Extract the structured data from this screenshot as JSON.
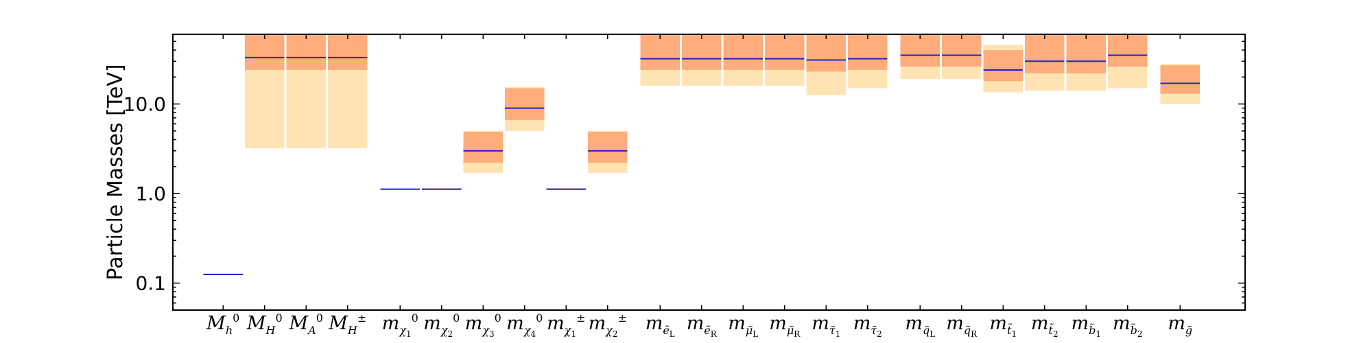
{
  "chart_data": {
    "type": "bar",
    "ylabel": "Particle Masses [TeV]",
    "yscale": "log",
    "ylim": [
      0.05,
      60
    ],
    "yticks": [
      {
        "value": 0.1,
        "label": "0.1"
      },
      {
        "value": 1.0,
        "label": "1.0"
      },
      {
        "value": 10.0,
        "label": "10.0"
      }
    ],
    "grid": false,
    "colors": {
      "outer_band": "#ffe4b3",
      "inner_band": "#ffad7a",
      "central": "#2222cc",
      "frame": "#000000"
    },
    "categories": [
      {
        "base": "M",
        "sub": "h",
        "sup": "0",
        "central": 0.125,
        "outer": null,
        "inner": null
      },
      {
        "base": "M",
        "sub": "H",
        "sup": "0",
        "central": 33,
        "outer": [
          3.2,
          60
        ],
        "inner": [
          24,
          60
        ]
      },
      {
        "base": "M",
        "sub": "A",
        "sup": "0",
        "central": 33,
        "outer": [
          3.2,
          60
        ],
        "inner": [
          24,
          60
        ]
      },
      {
        "base": "M",
        "sub": "H",
        "sup": "±",
        "central": 33,
        "outer": [
          3.2,
          60
        ],
        "inner": [
          24,
          60
        ]
      },
      {
        "base": "m",
        "sub": "χ",
        "subsub": "1",
        "sup": "0",
        "central": 1.12,
        "outer": null,
        "inner": null
      },
      {
        "base": "m",
        "sub": "χ",
        "subsub": "2",
        "sup": "0",
        "central": 1.12,
        "outer": [
          1.1,
          1.16
        ],
        "inner": null
      },
      {
        "base": "m",
        "sub": "χ",
        "subsub": "3",
        "sup": "0",
        "central": 3.0,
        "outer": [
          1.7,
          5.0
        ],
        "inner": [
          2.2,
          4.9
        ]
      },
      {
        "base": "m",
        "sub": "χ",
        "subsub": "4",
        "sup": "0",
        "central": 9.0,
        "outer": [
          5.0,
          15.5
        ],
        "inner": [
          6.6,
          15.0
        ]
      },
      {
        "base": "m",
        "sub": "χ",
        "subsub": "1",
        "sup": "±",
        "central": 1.12,
        "outer": [
          1.1,
          1.16
        ],
        "inner": null
      },
      {
        "base": "m",
        "sub": "χ",
        "subsub": "2",
        "sup": "±",
        "central": 3.0,
        "outer": [
          1.7,
          5.0
        ],
        "inner": [
          2.2,
          4.9
        ]
      },
      {
        "base": "m",
        "sub": "ẽ",
        "subsub": "L",
        "central": 32,
        "outer": [
          16,
          60
        ],
        "inner": [
          24,
          60
        ]
      },
      {
        "base": "m",
        "sub": "ẽ",
        "subsub": "R",
        "central": 32,
        "outer": [
          16,
          60
        ],
        "inner": [
          24,
          60
        ]
      },
      {
        "base": "m",
        "sub": "μ̃",
        "subsub": "L",
        "central": 32,
        "outer": [
          16,
          60
        ],
        "inner": [
          24,
          60
        ]
      },
      {
        "base": "m",
        "sub": "μ̃",
        "subsub": "R",
        "central": 32,
        "outer": [
          16,
          60
        ],
        "inner": [
          24,
          60
        ]
      },
      {
        "base": "m",
        "sub": "τ̃",
        "subsub": "1",
        "central": 31,
        "outer": [
          12.5,
          60
        ],
        "inner": [
          23,
          60
        ]
      },
      {
        "base": "m",
        "sub": "τ̃",
        "subsub": "2",
        "central": 32,
        "outer": [
          15,
          60
        ],
        "inner": [
          24,
          60
        ]
      },
      {
        "base": "m",
        "sub": "q̃",
        "subsub": "L",
        "central": 35,
        "outer": [
          19,
          60
        ],
        "inner": [
          26,
          60
        ]
      },
      {
        "base": "m",
        "sub": "q̃",
        "subsub": "R",
        "central": 35,
        "outer": [
          19,
          60
        ],
        "inner": [
          26,
          60
        ]
      },
      {
        "base": "m",
        "sub": "t̃",
        "subsub": "1",
        "central": 24,
        "outer": [
          13.5,
          46
        ],
        "inner": [
          18,
          40
        ]
      },
      {
        "base": "m",
        "sub": "t̃",
        "subsub": "2",
        "central": 30,
        "outer": [
          14,
          60
        ],
        "inner": [
          22,
          60
        ]
      },
      {
        "base": "m",
        "sub": "b̃",
        "subsub": "1",
        "central": 30,
        "outer": [
          14,
          60
        ],
        "inner": [
          22,
          60
        ]
      },
      {
        "base": "m",
        "sub": "b̃",
        "subsub": "2",
        "central": 35,
        "outer": [
          15,
          60
        ],
        "inner": [
          26,
          60
        ]
      },
      {
        "base": "m",
        "sub": "g̃",
        "central": 17,
        "outer": [
          10,
          28
        ],
        "inner": [
          13,
          27
        ]
      }
    ]
  }
}
